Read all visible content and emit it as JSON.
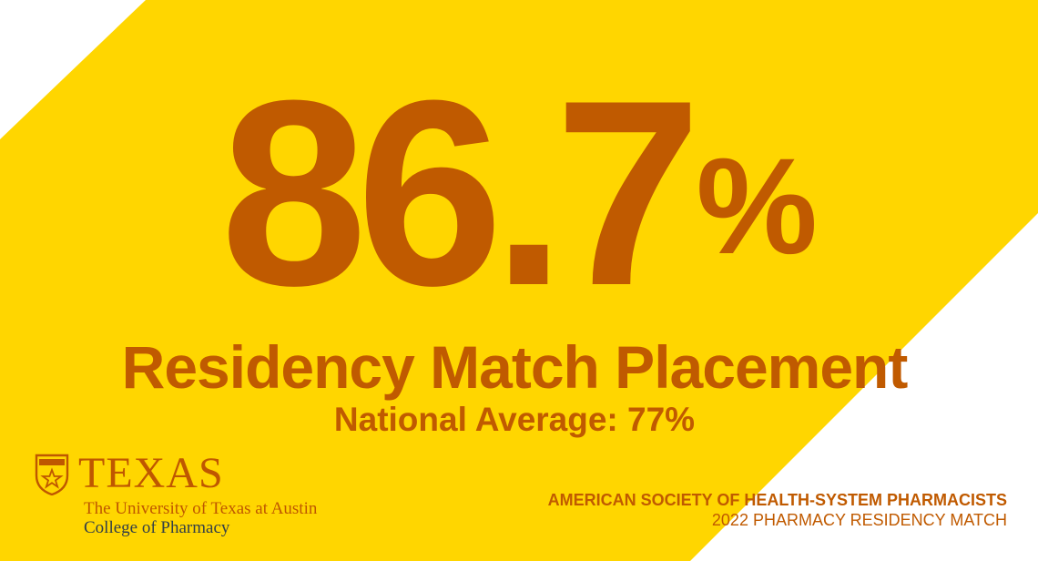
{
  "colors": {
    "background": "#FFFFFF",
    "band": "#FFD600",
    "accent": "#C05A00",
    "logo_orange": "#BF5700",
    "logo_gray": "#333F48"
  },
  "headline": {
    "value": "86.7",
    "unit": "%"
  },
  "subtitle": "Residency Match Placement",
  "national_average": "National Average: 77%",
  "logo": {
    "seal_icon": "ut-seal-icon",
    "wordmark": "TEXAS",
    "university": "The University of Texas at Austin",
    "college": "College of Pharmacy"
  },
  "source": {
    "organization": "AMERICAN SOCIETY OF HEALTH-SYSTEM PHARMACISTS",
    "event": "2022 PHARMACY RESIDENCY MATCH"
  }
}
